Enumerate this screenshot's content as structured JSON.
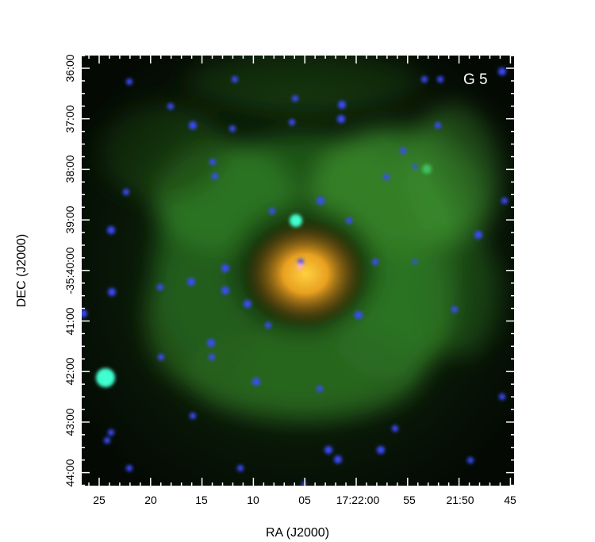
{
  "figure": {
    "object_label": "G 5",
    "x_axis_label": "RA (J2000)",
    "y_axis_label": "DEC (J2000)",
    "x_ticks": [
      "25",
      "20",
      "15",
      "10",
      "05",
      "17:22:00",
      "55",
      "21:50",
      "45"
    ],
    "y_ticks": [
      "36:00",
      "37:00",
      "38:00",
      "39:00",
      "-35:40:00",
      "41:00",
      "42:00",
      "43:00",
      "44:00"
    ],
    "colors": {
      "background": "#000000",
      "nebula": "#2f8a2a",
      "core": "#f0a020",
      "stars": "#3a4cff",
      "bright_star": "#40ffd0",
      "label": "#ffffff"
    }
  }
}
